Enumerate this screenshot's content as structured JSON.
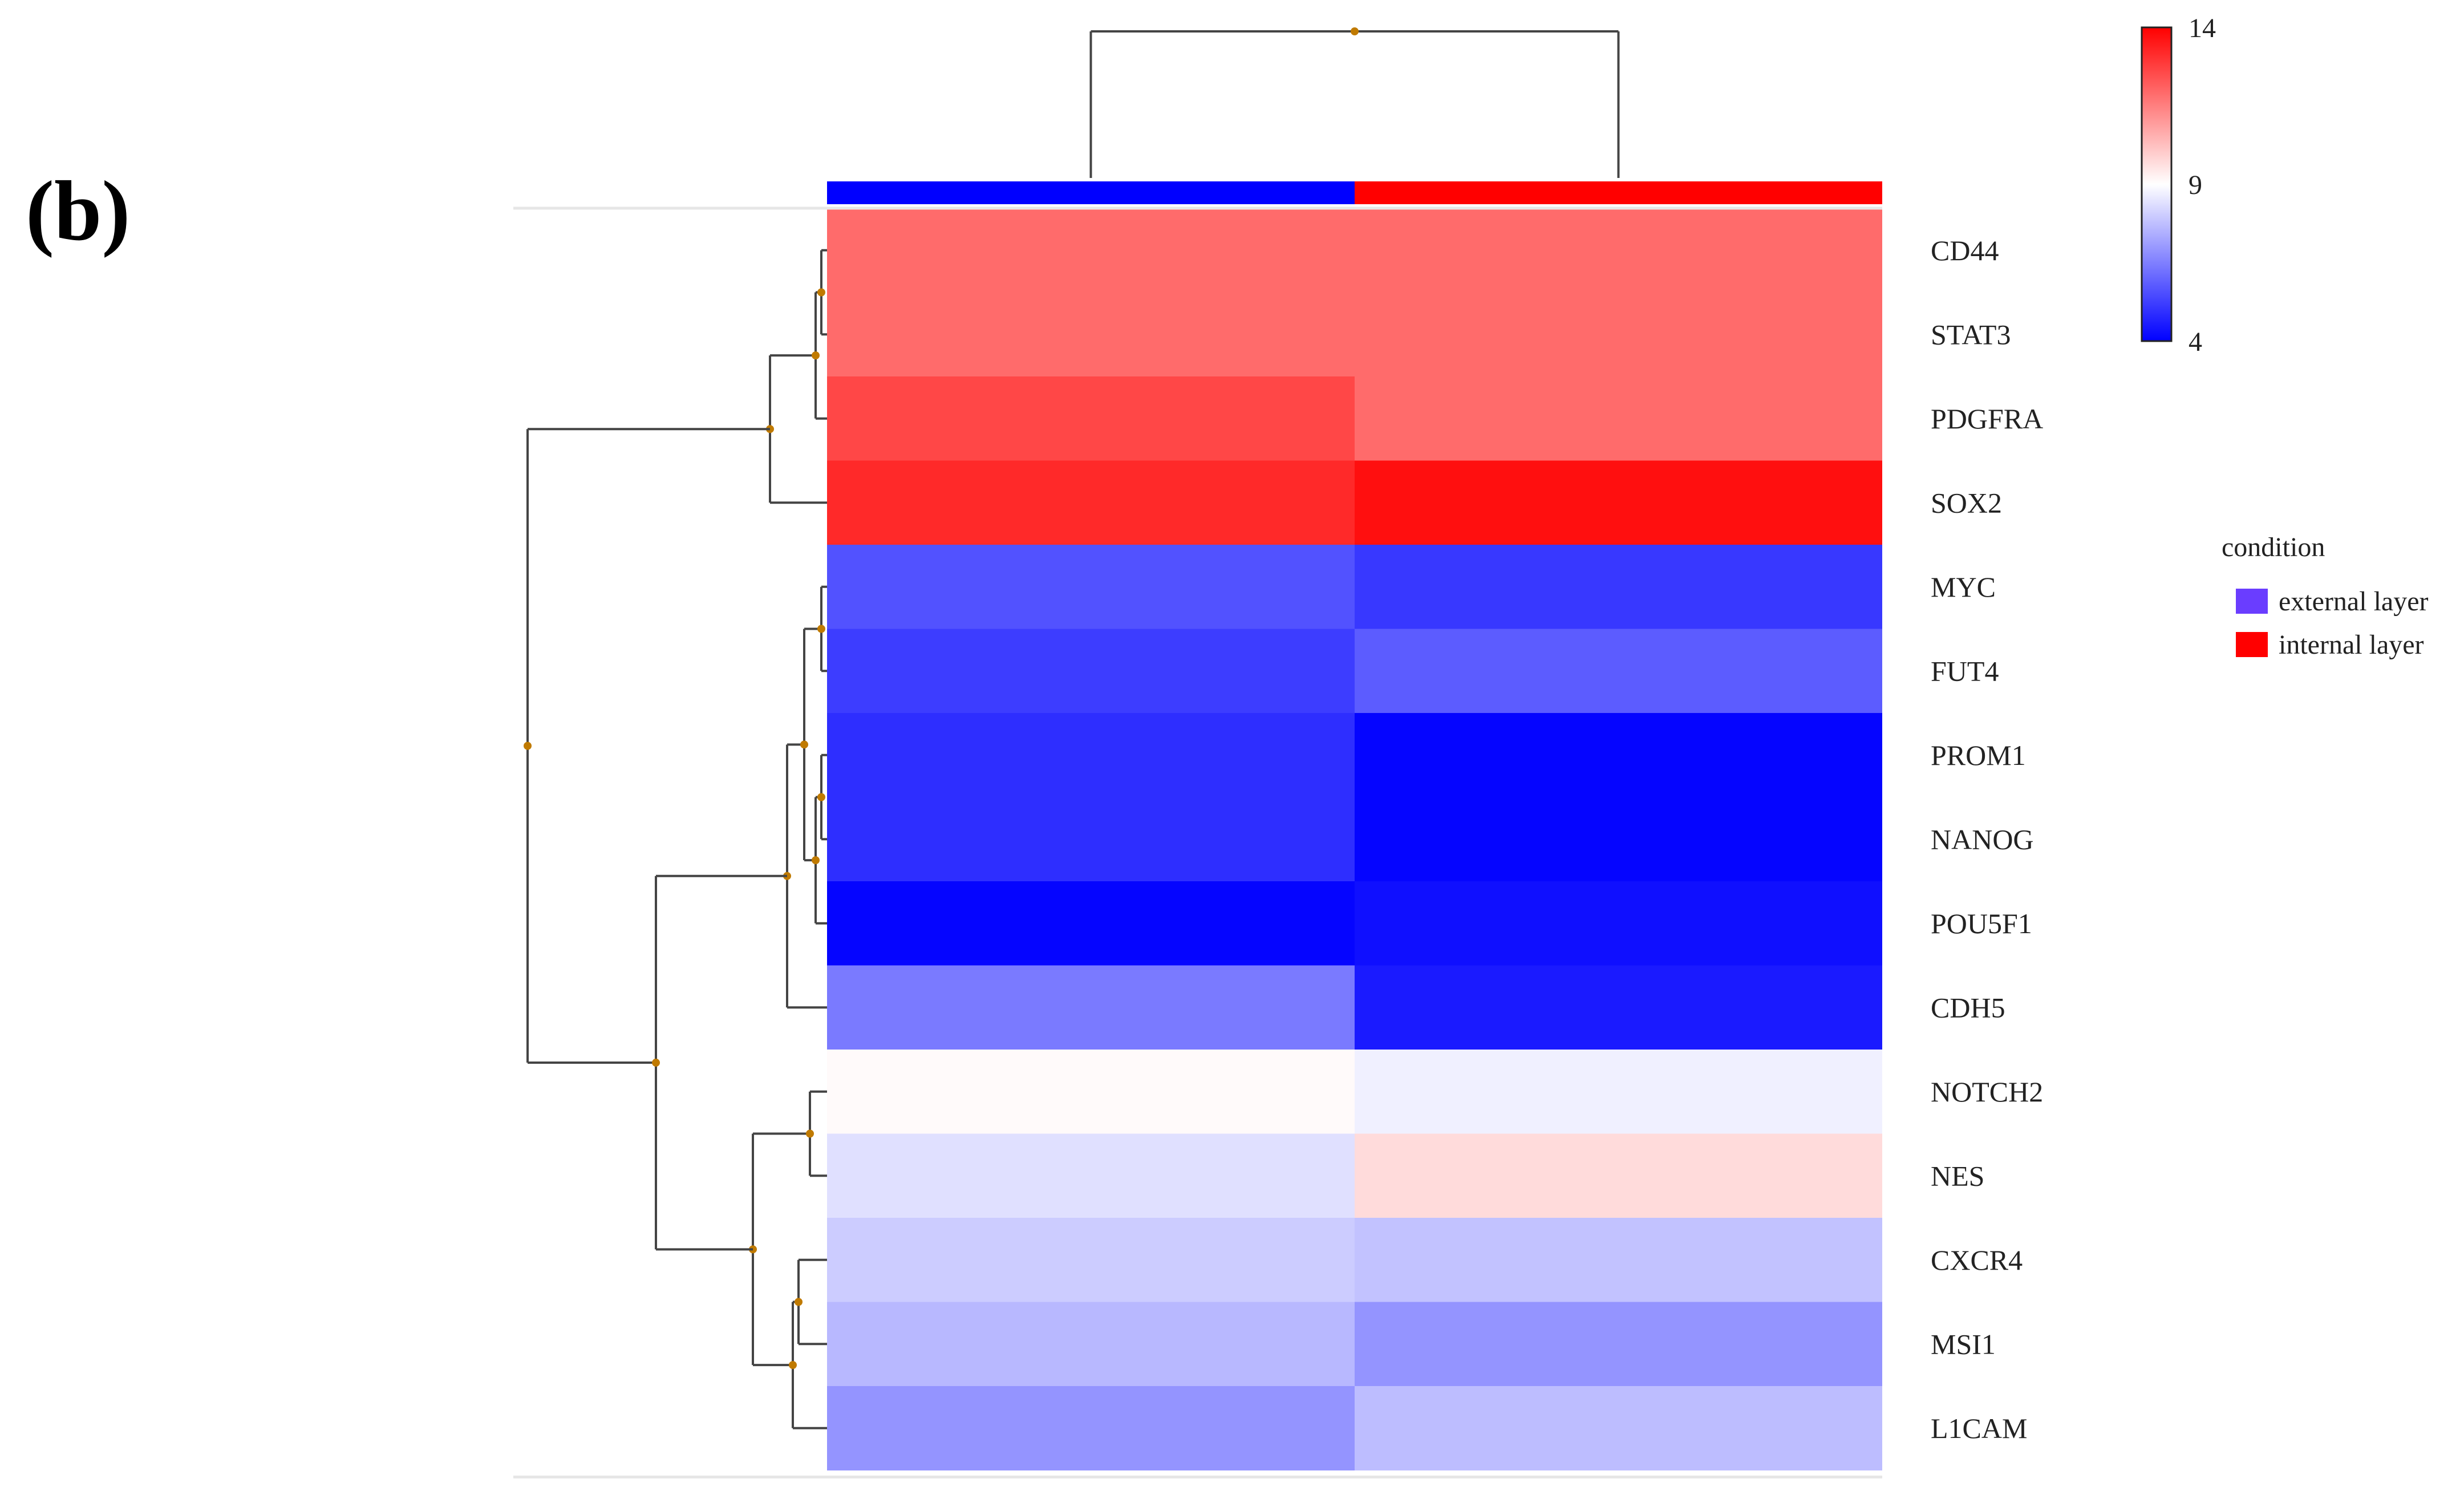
{
  "panel_label": "(b)",
  "chart_data": {
    "type": "heatmap",
    "title": "",
    "columns": [
      "external layer",
      "internal layer"
    ],
    "rows": [
      "CD44",
      "STAT3",
      "PDGFRA",
      "SOX2",
      "MYC",
      "FUT4",
      "PROM1",
      "NANOG",
      "POU5F1",
      "CDH5",
      "NOTCH2",
      "NES",
      "CXCR4",
      "MSI1",
      "L1CAM"
    ],
    "values": [
      [
        11.9,
        11.9
      ],
      [
        11.9,
        11.9
      ],
      [
        12.6,
        11.9
      ],
      [
        13.2,
        13.7
      ],
      [
        5.6,
        5.1
      ],
      [
        5.2,
        5.8
      ],
      [
        4.9,
        4.1
      ],
      [
        4.9,
        4.1
      ],
      [
        4.1,
        4.3
      ],
      [
        6.4,
        4.5
      ],
      [
        9.1,
        8.7
      ],
      [
        8.4,
        9.7
      ],
      [
        8.0,
        7.8
      ],
      [
        7.6,
        6.9
      ],
      [
        6.9,
        7.7
      ]
    ],
    "color_scale": {
      "min": 4,
      "mid": 9,
      "max": 14,
      "ticks": [
        "14",
        "9",
        "4"
      ],
      "low_color": "#0000ff",
      "mid_color": "#ffffff",
      "high_color": "#ff0000"
    },
    "condition_legend": {
      "title": "condition",
      "items": [
        {
          "label": "external layer",
          "color": "#6a3dff"
        },
        {
          "label": "internal layer",
          "color": "#ff0000"
        }
      ]
    },
    "condition_bar_colors": [
      "#0000ff",
      "#ff0000"
    ],
    "dendrogram_color": "#444444",
    "node_color": "#c07a00"
  }
}
